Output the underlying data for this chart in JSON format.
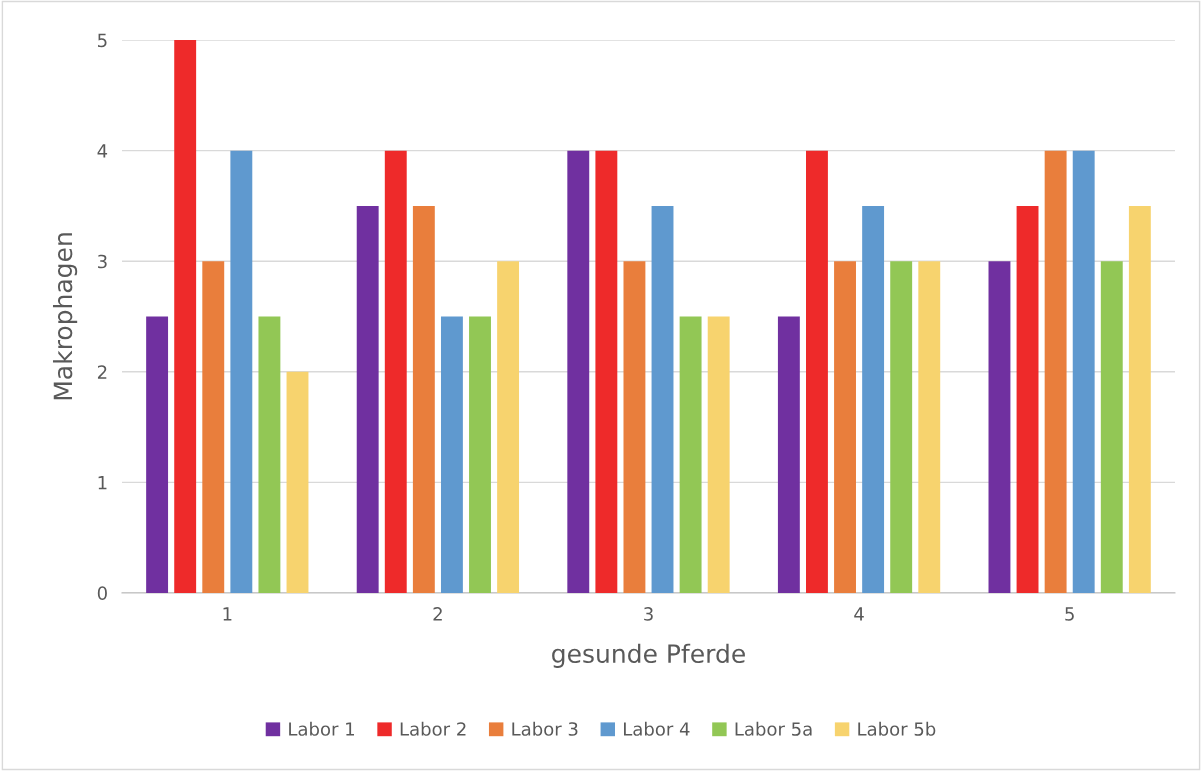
{
  "chart_data": {
    "type": "bar",
    "xlabel": "gesunde Pferde",
    "ylabel": "Makrophagen",
    "categories": [
      "1",
      "2",
      "3",
      "4",
      "5"
    ],
    "series": [
      {
        "name": "Labor 1",
        "color": "#7030a0",
        "values": [
          2.5,
          3.5,
          4,
          2.5,
          3
        ]
      },
      {
        "name": "Labor 2",
        "color": "#ee2a2a",
        "values": [
          5,
          4,
          4,
          4,
          3.5
        ]
      },
      {
        "name": "Labor 3",
        "color": "#e97e3c",
        "values": [
          3,
          3.5,
          3,
          3,
          4
        ]
      },
      {
        "name": "Labor 4",
        "color": "#5f99cf",
        "values": [
          4,
          2.5,
          3.5,
          3.5,
          4
        ]
      },
      {
        "name": "Labor 5a",
        "color": "#92c755",
        "values": [
          2.5,
          2.5,
          2.5,
          3,
          3
        ]
      },
      {
        "name": "Labor 5b",
        "color": "#f7d36e",
        "values": [
          2,
          3,
          2.5,
          3,
          3.5
        ]
      }
    ],
    "ylim": [
      0,
      5
    ],
    "yticks": [
      0,
      1,
      2,
      3,
      4,
      5
    ],
    "grid": "y",
    "legend": "bottom"
  }
}
